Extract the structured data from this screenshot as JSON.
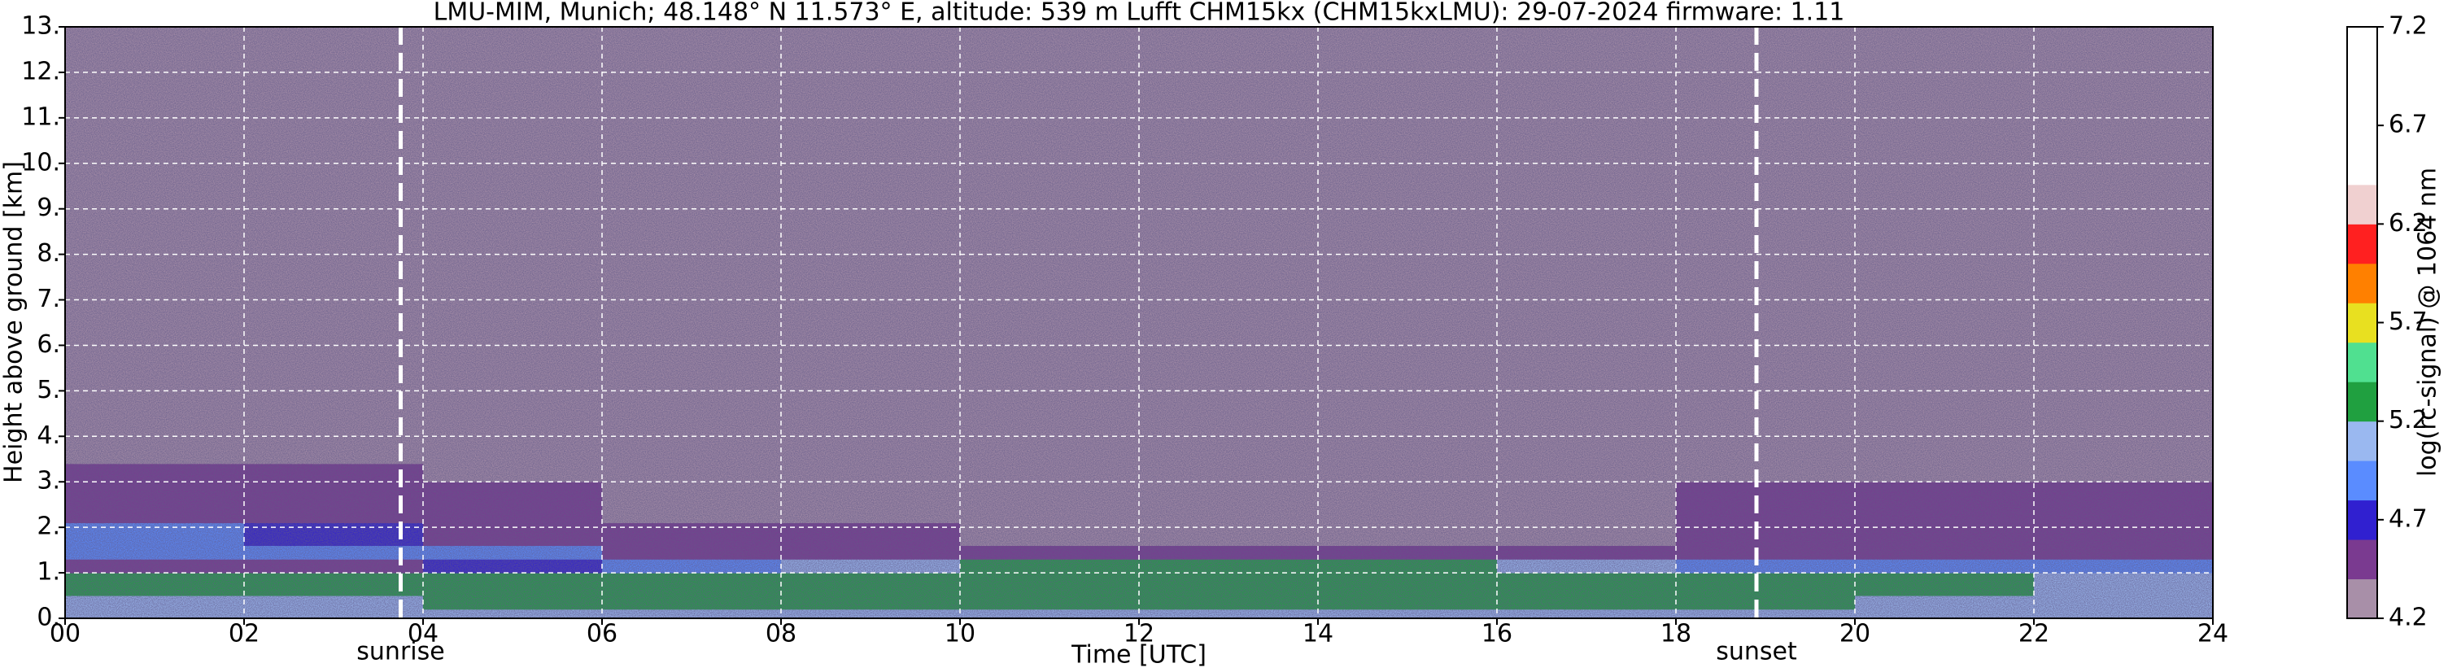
{
  "chart_data": {
    "type": "heatmap",
    "title": "LMU-MIM, Munich; 48.148° N 11.573° E, altitude: 539 m    Lufft CHM15kx (CHM15kxLMU): 29-07-2024    firmware: 1.11",
    "x_label": "Time [UTC]",
    "y_label": "Height above ground [km]",
    "colorbar_label": "log(rc-signal) @ 1064 nm",
    "xlim": [
      0,
      24
    ],
    "xticks": [
      {
        "value": 0,
        "label": "00"
      },
      {
        "value": 2,
        "label": "02"
      },
      {
        "value": 4,
        "label": "04"
      },
      {
        "value": 6,
        "label": "06"
      },
      {
        "value": 8,
        "label": "08"
      },
      {
        "value": 10,
        "label": "10"
      },
      {
        "value": 12,
        "label": "12"
      },
      {
        "value": 14,
        "label": "14"
      },
      {
        "value": 16,
        "label": "16"
      },
      {
        "value": 18,
        "label": "18"
      },
      {
        "value": 20,
        "label": "20"
      },
      {
        "value": 22,
        "label": "22"
      },
      {
        "value": 24,
        "label": "24"
      }
    ],
    "ylim": [
      0,
      13
    ],
    "yticks": [
      {
        "value": 0,
        "label": "0."
      },
      {
        "value": 1,
        "label": "1."
      },
      {
        "value": 2,
        "label": "2."
      },
      {
        "value": 3,
        "label": "3."
      },
      {
        "value": 4,
        "label": "4."
      },
      {
        "value": 5,
        "label": "5."
      },
      {
        "value": 6,
        "label": "6."
      },
      {
        "value": 7,
        "label": "7."
      },
      {
        "value": 8,
        "label": "8."
      },
      {
        "value": 9,
        "label": "9."
      },
      {
        "value": 10,
        "label": "10."
      },
      {
        "value": 11,
        "label": "11."
      },
      {
        "value": 12,
        "label": "12."
      },
      {
        "value": 13,
        "label": "13."
      }
    ],
    "clim": [
      4.2,
      7.2
    ],
    "cticks": [
      4.2,
      4.7,
      5.2,
      5.7,
      6.2,
      6.7,
      7.2
    ],
    "colormap": [
      "#a88fa8",
      "#7a3a90",
      "#3020d0",
      "#5a8cff",
      "#9ab8f0",
      "#20a040",
      "#50e090",
      "#e8e020",
      "#ff8000",
      "#ff2020",
      "#f0d0d0",
      "#ffffff",
      "#ffffff",
      "#ffffff",
      "#ffffff"
    ],
    "grid": true,
    "x_bins": [
      0,
      2,
      4,
      6,
      8,
      10,
      12,
      14,
      16,
      18,
      20,
      22,
      24
    ],
    "y_bins": [
      0,
      0.2,
      0.5,
      1.0,
      1.3,
      1.6,
      2.1,
      3.0,
      3.4,
      13
    ],
    "z": [
      [
        5.0,
        5.0,
        5.0,
        5.0,
        5.1,
        5.1,
        5.1,
        5.1,
        5.1,
        5.0,
        5.0,
        5.0
      ],
      [
        5.1,
        5.1,
        5.2,
        5.3,
        5.3,
        5.3,
        5.3,
        5.3,
        5.3,
        5.2,
        5.1,
        5.1
      ],
      [
        5.2,
        5.2,
        5.2,
        5.2,
        5.3,
        5.3,
        5.3,
        5.3,
        5.3,
        5.2,
        5.2,
        5.1
      ],
      [
        4.5,
        4.5,
        4.6,
        4.8,
        5.1,
        5.2,
        5.2,
        5.2,
        5.0,
        4.8,
        4.8,
        4.8
      ],
      [
        4.8,
        4.8,
        4.8,
        4.5,
        4.5,
        4.4,
        4.4,
        4.4,
        4.4,
        4.5,
        4.5,
        4.5
      ],
      [
        4.8,
        4.7,
        4.5,
        4.4,
        4.4,
        4.3,
        4.3,
        4.3,
        4.3,
        4.4,
        4.4,
        4.4
      ],
      [
        4.4,
        4.4,
        4.4,
        4.3,
        4.3,
        4.3,
        4.3,
        4.3,
        4.3,
        4.4,
        4.4,
        4.4
      ],
      [
        4.5,
        4.5,
        4.3,
        4.3,
        4.3,
        4.3,
        4.3,
        4.3,
        4.3,
        4.3,
        4.3,
        4.3
      ],
      [
        4.2,
        4.2,
        4.2,
        4.2,
        4.2,
        4.2,
        4.2,
        4.2,
        4.2,
        4.2,
        4.2,
        4.2
      ]
    ],
    "annotations": [
      {
        "x": 3.75,
        "text": "sunrise"
      },
      {
        "x": 18.9,
        "text": "sunset"
      }
    ]
  }
}
